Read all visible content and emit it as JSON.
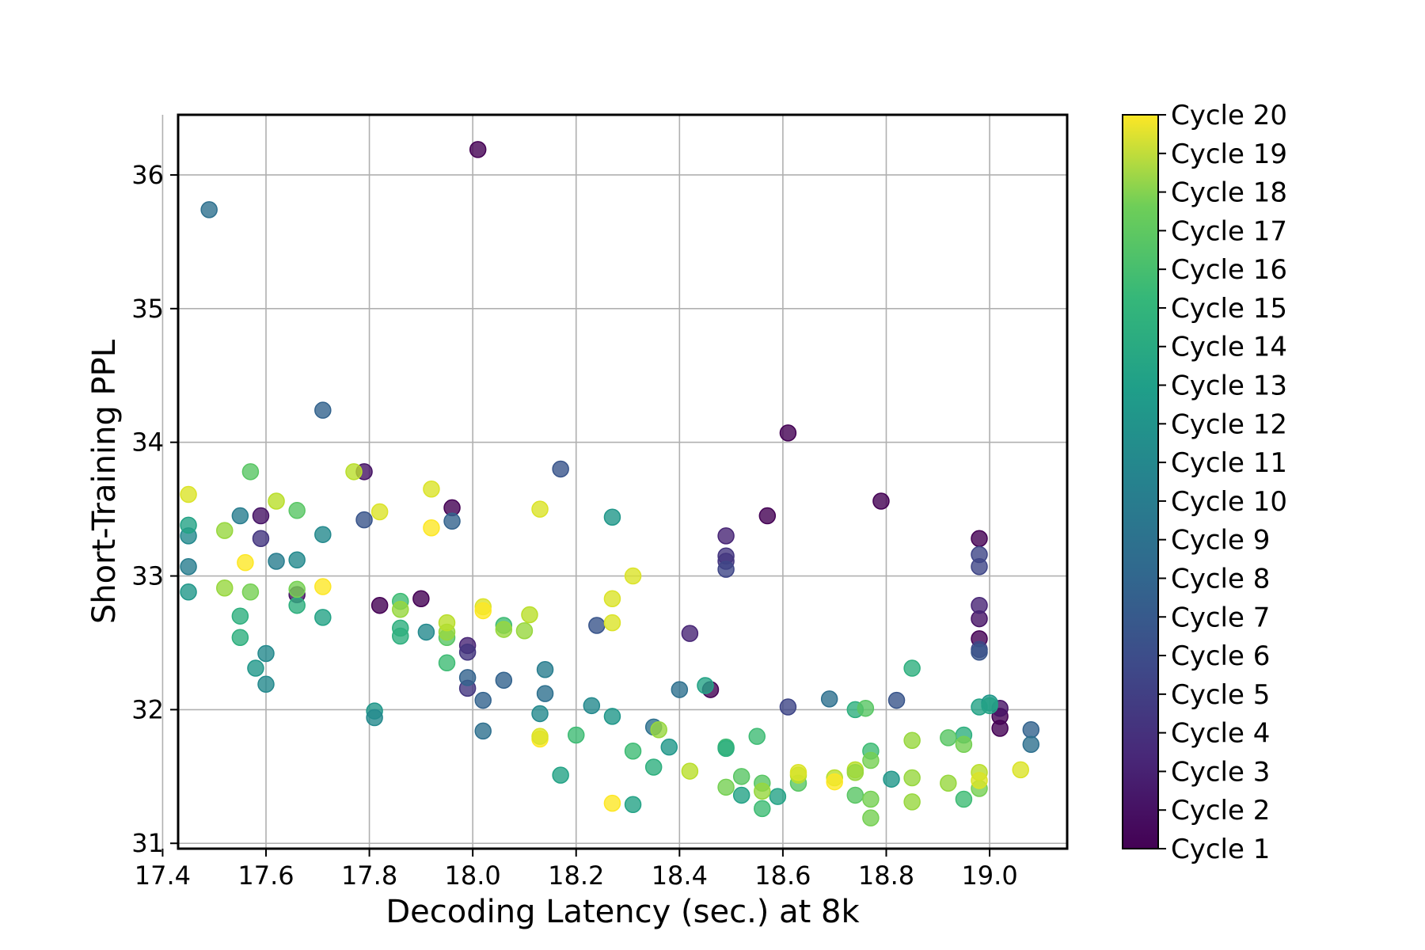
{
  "chart_data": {
    "type": "scatter",
    "title": "",
    "xlabel": "Decoding Latency (sec.) at 8k",
    "ylabel": "Short-Training PPL",
    "xlim": [
      17.43,
      19.15
    ],
    "ylim": [
      30.96,
      36.45
    ],
    "xticks": [
      "17.4",
      "17.6",
      "17.8",
      "18.0",
      "18.2",
      "18.4",
      "18.6",
      "18.8",
      "19.0"
    ],
    "yticks": [
      "31",
      "32",
      "33",
      "34",
      "35",
      "36"
    ],
    "grid": true,
    "colormap": "viridis",
    "colorbar_labels": [
      "Cycle 1",
      "Cycle 2",
      "Cycle 3",
      "Cycle 4",
      "Cycle 5",
      "Cycle 6",
      "Cycle 7",
      "Cycle 8",
      "Cycle 9",
      "Cycle 10",
      "Cycle 11",
      "Cycle 12",
      "Cycle 13",
      "Cycle 14",
      "Cycle 15",
      "Cycle 16",
      "Cycle 17",
      "Cycle 18",
      "Cycle 19",
      "Cycle 20"
    ],
    "points": [
      {
        "x": 18.01,
        "y": 36.19,
        "cycle": 1
      },
      {
        "x": 18.61,
        "y": 34.07,
        "cycle": 1
      },
      {
        "x": 18.57,
        "y": 33.45,
        "cycle": 1
      },
      {
        "x": 18.79,
        "y": 33.56,
        "cycle": 1
      },
      {
        "x": 17.96,
        "y": 33.51,
        "cycle": 1
      },
      {
        "x": 17.82,
        "y": 32.78,
        "cycle": 1
      },
      {
        "x": 17.9,
        "y": 32.83,
        "cycle": 1
      },
      {
        "x": 18.46,
        "y": 32.15,
        "cycle": 1
      },
      {
        "x": 18.98,
        "y": 32.53,
        "cycle": 1
      },
      {
        "x": 18.98,
        "y": 33.28,
        "cycle": 1
      },
      {
        "x": 18.98,
        "y": 32.68,
        "cycle": 2
      },
      {
        "x": 19.02,
        "y": 31.86,
        "cycle": 1
      },
      {
        "x": 19.02,
        "y": 31.95,
        "cycle": 1
      },
      {
        "x": 17.66,
        "y": 32.86,
        "cycle": 2
      },
      {
        "x": 17.59,
        "y": 33.45,
        "cycle": 2
      },
      {
        "x": 17.79,
        "y": 33.78,
        "cycle": 2
      },
      {
        "x": 19.02,
        "y": 32.01,
        "cycle": 2
      },
      {
        "x": 18.98,
        "y": 32.78,
        "cycle": 3
      },
      {
        "x": 18.49,
        "y": 33.3,
        "cycle": 3
      },
      {
        "x": 18.49,
        "y": 33.15,
        "cycle": 4
      },
      {
        "x": 18.49,
        "y": 33.11,
        "cycle": 4
      },
      {
        "x": 18.49,
        "y": 33.05,
        "cycle": 5
      },
      {
        "x": 18.42,
        "y": 32.57,
        "cycle": 3
      },
      {
        "x": 17.59,
        "y": 33.28,
        "cycle": 4
      },
      {
        "x": 17.99,
        "y": 32.48,
        "cycle": 3
      },
      {
        "x": 17.99,
        "y": 32.43,
        "cycle": 4
      },
      {
        "x": 17.99,
        "y": 32.16,
        "cycle": 4
      },
      {
        "x": 18.98,
        "y": 33.16,
        "cycle": 5
      },
      {
        "x": 18.98,
        "y": 33.07,
        "cycle": 5
      },
      {
        "x": 18.98,
        "y": 32.45,
        "cycle": 5
      },
      {
        "x": 18.98,
        "y": 32.43,
        "cycle": 6
      },
      {
        "x": 18.61,
        "y": 32.02,
        "cycle": 5
      },
      {
        "x": 18.82,
        "y": 32.07,
        "cycle": 6
      },
      {
        "x": 17.79,
        "y": 33.42,
        "cycle": 6
      },
      {
        "x": 17.96,
        "y": 33.41,
        "cycle": 7
      },
      {
        "x": 18.17,
        "y": 33.8,
        "cycle": 6
      },
      {
        "x": 18.24,
        "y": 32.63,
        "cycle": 6
      },
      {
        "x": 17.71,
        "y": 34.24,
        "cycle": 7
      },
      {
        "x": 17.49,
        "y": 35.74,
        "cycle": 8
      },
      {
        "x": 18.02,
        "y": 32.07,
        "cycle": 7
      },
      {
        "x": 18.06,
        "y": 32.22,
        "cycle": 7
      },
      {
        "x": 17.99,
        "y": 32.24,
        "cycle": 7
      },
      {
        "x": 19.08,
        "y": 31.85,
        "cycle": 7
      },
      {
        "x": 19.08,
        "y": 31.74,
        "cycle": 8
      },
      {
        "x": 18.69,
        "y": 32.08,
        "cycle": 8
      },
      {
        "x": 18.4,
        "y": 32.15,
        "cycle": 8
      },
      {
        "x": 18.35,
        "y": 31.87,
        "cycle": 8
      },
      {
        "x": 18.02,
        "y": 31.84,
        "cycle": 8
      },
      {
        "x": 18.14,
        "y": 32.12,
        "cycle": 8
      },
      {
        "x": 18.14,
        "y": 32.3,
        "cycle": 9
      },
      {
        "x": 17.45,
        "y": 33.07,
        "cycle": 9
      },
      {
        "x": 17.45,
        "y": 33.3,
        "cycle": 10
      },
      {
        "x": 17.45,
        "y": 32.88,
        "cycle": 11
      },
      {
        "x": 17.55,
        "y": 33.45,
        "cycle": 9
      },
      {
        "x": 17.62,
        "y": 33.11,
        "cycle": 9
      },
      {
        "x": 17.66,
        "y": 33.12,
        "cycle": 10
      },
      {
        "x": 17.71,
        "y": 33.31,
        "cycle": 10
      },
      {
        "x": 17.71,
        "y": 32.69,
        "cycle": 12
      },
      {
        "x": 17.6,
        "y": 32.42,
        "cycle": 10
      },
      {
        "x": 17.6,
        "y": 32.19,
        "cycle": 10
      },
      {
        "x": 17.58,
        "y": 32.31,
        "cycle": 11
      },
      {
        "x": 17.81,
        "y": 31.99,
        "cycle": 11
      },
      {
        "x": 17.81,
        "y": 31.94,
        "cycle": 10
      },
      {
        "x": 17.91,
        "y": 32.58,
        "cycle": 10
      },
      {
        "x": 18.13,
        "y": 31.97,
        "cycle": 10
      },
      {
        "x": 18.23,
        "y": 32.03,
        "cycle": 10
      },
      {
        "x": 18.27,
        "y": 31.95,
        "cycle": 11
      },
      {
        "x": 18.27,
        "y": 33.44,
        "cycle": 11
      },
      {
        "x": 18.38,
        "y": 31.72,
        "cycle": 11
      },
      {
        "x": 18.45,
        "y": 32.18,
        "cycle": 12
      },
      {
        "x": 18.81,
        "y": 31.48,
        "cycle": 11
      },
      {
        "x": 18.98,
        "y": 32.02,
        "cycle": 12
      },
      {
        "x": 19.0,
        "y": 32.05,
        "cycle": 11
      },
      {
        "x": 19.0,
        "y": 32.03,
        "cycle": 12
      },
      {
        "x": 18.17,
        "y": 31.51,
        "cycle": 12
      },
      {
        "x": 18.31,
        "y": 31.29,
        "cycle": 12
      },
      {
        "x": 18.35,
        "y": 31.57,
        "cycle": 13
      },
      {
        "x": 18.52,
        "y": 31.36,
        "cycle": 12
      },
      {
        "x": 18.59,
        "y": 31.35,
        "cycle": 12
      },
      {
        "x": 18.74,
        "y": 32.0,
        "cycle": 13
      },
      {
        "x": 18.85,
        "y": 32.31,
        "cycle": 13
      },
      {
        "x": 18.95,
        "y": 31.81,
        "cycle": 13
      },
      {
        "x": 18.95,
        "y": 31.33,
        "cycle": 14
      },
      {
        "x": 17.45,
        "y": 33.38,
        "cycle": 12
      },
      {
        "x": 17.55,
        "y": 32.7,
        "cycle": 13
      },
      {
        "x": 17.55,
        "y": 32.54,
        "cycle": 13
      },
      {
        "x": 17.66,
        "y": 32.78,
        "cycle": 13
      },
      {
        "x": 17.86,
        "y": 32.81,
        "cycle": 14
      },
      {
        "x": 17.86,
        "y": 32.61,
        "cycle": 13
      },
      {
        "x": 17.86,
        "y": 32.55,
        "cycle": 13
      },
      {
        "x": 17.95,
        "y": 32.35,
        "cycle": 14
      },
      {
        "x": 17.95,
        "y": 32.54,
        "cycle": 15
      },
      {
        "x": 18.06,
        "y": 32.63,
        "cycle": 14
      },
      {
        "x": 17.66,
        "y": 33.49,
        "cycle": 15
      },
      {
        "x": 17.57,
        "y": 33.78,
        "cycle": 15
      },
      {
        "x": 18.2,
        "y": 31.81,
        "cycle": 14
      },
      {
        "x": 18.31,
        "y": 31.69,
        "cycle": 14
      },
      {
        "x": 18.49,
        "y": 31.72,
        "cycle": 14
      },
      {
        "x": 18.49,
        "y": 31.71,
        "cycle": 13
      },
      {
        "x": 18.55,
        "y": 31.8,
        "cycle": 14
      },
      {
        "x": 18.52,
        "y": 31.5,
        "cycle": 15
      },
      {
        "x": 18.56,
        "y": 31.45,
        "cycle": 15
      },
      {
        "x": 18.56,
        "y": 31.26,
        "cycle": 14
      },
      {
        "x": 18.49,
        "y": 31.42,
        "cycle": 16
      },
      {
        "x": 18.63,
        "y": 31.45,
        "cycle": 15
      },
      {
        "x": 18.74,
        "y": 31.36,
        "cycle": 15
      },
      {
        "x": 18.76,
        "y": 32.01,
        "cycle": 15
      },
      {
        "x": 18.77,
        "y": 31.69,
        "cycle": 14
      },
      {
        "x": 18.77,
        "y": 31.62,
        "cycle": 16
      },
      {
        "x": 18.77,
        "y": 31.33,
        "cycle": 16
      },
      {
        "x": 18.77,
        "y": 31.19,
        "cycle": 16
      },
      {
        "x": 18.92,
        "y": 31.79,
        "cycle": 15
      },
      {
        "x": 18.95,
        "y": 31.74,
        "cycle": 16
      },
      {
        "x": 18.98,
        "y": 31.41,
        "cycle": 16
      },
      {
        "x": 17.57,
        "y": 32.88,
        "cycle": 16
      },
      {
        "x": 17.66,
        "y": 32.9,
        "cycle": 16
      },
      {
        "x": 17.86,
        "y": 32.75,
        "cycle": 17
      },
      {
        "x": 17.95,
        "y": 32.58,
        "cycle": 17
      },
      {
        "x": 18.06,
        "y": 32.6,
        "cycle": 17
      },
      {
        "x": 18.1,
        "y": 32.59,
        "cycle": 17
      },
      {
        "x": 18.36,
        "y": 31.85,
        "cycle": 17
      },
      {
        "x": 18.85,
        "y": 31.77,
        "cycle": 17
      },
      {
        "x": 18.85,
        "y": 31.49,
        "cycle": 17
      },
      {
        "x": 18.85,
        "y": 31.31,
        "cycle": 17
      },
      {
        "x": 18.92,
        "y": 31.45,
        "cycle": 17
      },
      {
        "x": 18.56,
        "y": 31.39,
        "cycle": 17
      },
      {
        "x": 18.63,
        "y": 31.51,
        "cycle": 18
      },
      {
        "x": 18.7,
        "y": 31.49,
        "cycle": 18
      },
      {
        "x": 18.74,
        "y": 31.55,
        "cycle": 18
      },
      {
        "x": 18.74,
        "y": 31.53,
        "cycle": 17
      },
      {
        "x": 18.42,
        "y": 31.54,
        "cycle": 18
      },
      {
        "x": 18.98,
        "y": 31.53,
        "cycle": 18
      },
      {
        "x": 17.52,
        "y": 33.34,
        "cycle": 17
      },
      {
        "x": 17.52,
        "y": 32.91,
        "cycle": 17
      },
      {
        "x": 17.62,
        "y": 33.56,
        "cycle": 18
      },
      {
        "x": 17.77,
        "y": 33.78,
        "cycle": 18
      },
      {
        "x": 17.95,
        "y": 32.65,
        "cycle": 18
      },
      {
        "x": 18.02,
        "y": 32.77,
        "cycle": 19
      },
      {
        "x": 18.11,
        "y": 32.71,
        "cycle": 18
      },
      {
        "x": 18.13,
        "y": 33.5,
        "cycle": 19
      },
      {
        "x": 18.27,
        "y": 32.65,
        "cycle": 19
      },
      {
        "x": 18.31,
        "y": 33.0,
        "cycle": 19
      },
      {
        "x": 18.27,
        "y": 32.83,
        "cycle": 19
      },
      {
        "x": 17.92,
        "y": 33.65,
        "cycle": 19
      },
      {
        "x": 17.92,
        "y": 33.36,
        "cycle": 20
      },
      {
        "x": 17.45,
        "y": 33.61,
        "cycle": 19
      },
      {
        "x": 17.56,
        "y": 33.1,
        "cycle": 20
      },
      {
        "x": 17.71,
        "y": 32.92,
        "cycle": 20
      },
      {
        "x": 17.82,
        "y": 33.48,
        "cycle": 19
      },
      {
        "x": 18.02,
        "y": 32.74,
        "cycle": 20
      },
      {
        "x": 18.13,
        "y": 31.78,
        "cycle": 20
      },
      {
        "x": 18.13,
        "y": 31.8,
        "cycle": 19
      },
      {
        "x": 18.27,
        "y": 31.3,
        "cycle": 20
      },
      {
        "x": 18.63,
        "y": 31.53,
        "cycle": 19
      },
      {
        "x": 18.7,
        "y": 31.46,
        "cycle": 20
      },
      {
        "x": 18.98,
        "y": 31.47,
        "cycle": 19
      },
      {
        "x": 19.06,
        "y": 31.55,
        "cycle": 19
      }
    ]
  }
}
